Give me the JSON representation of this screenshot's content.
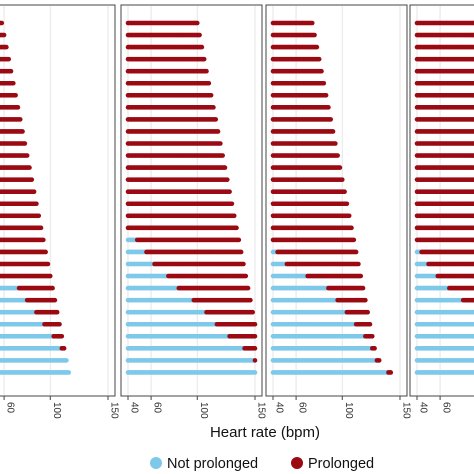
{
  "chart_data": {
    "type": "dot-strip",
    "xlabel": "Heart rate (bpm)",
    "xlim": [
      40,
      150
    ],
    "xticks": [
      "40",
      "60",
      "100",
      "150"
    ],
    "colors": {
      "not_prolonged": "#7ec8ea",
      "prolonged": "#9b0a12"
    },
    "legend": {
      "placement": "bottom",
      "entries": [
        {
          "key": "not_prolonged",
          "label": "Not prolonged"
        },
        {
          "key": "prolonged",
          "label": "Prolonged"
        }
      ]
    },
    "panels": [
      {
        "rows": [
          {
            "threshold": 40,
            "max": 58
          },
          {
            "threshold": 40,
            "max": 60
          },
          {
            "threshold": 40,
            "max": 62
          },
          {
            "threshold": 40,
            "max": 64
          },
          {
            "threshold": 40,
            "max": 66
          },
          {
            "threshold": 40,
            "max": 68
          },
          {
            "threshold": 40,
            "max": 70
          },
          {
            "threshold": 40,
            "max": 72
          },
          {
            "threshold": 40,
            "max": 74
          },
          {
            "threshold": 40,
            "max": 76
          },
          {
            "threshold": 40,
            "max": 78
          },
          {
            "threshold": 40,
            "max": 80
          },
          {
            "threshold": 40,
            "max": 82
          },
          {
            "threshold": 40,
            "max": 84
          },
          {
            "threshold": 40,
            "max": 86
          },
          {
            "threshold": 40,
            "max": 88
          },
          {
            "threshold": 40,
            "max": 90
          },
          {
            "threshold": 40,
            "max": 92
          },
          {
            "threshold": 40,
            "max": 94
          },
          {
            "threshold": 40,
            "max": 96
          },
          {
            "threshold": 40,
            "max": 98
          },
          {
            "threshold": 40,
            "max": 100
          },
          {
            "threshold": 73,
            "max": 102
          },
          {
            "threshold": 80,
            "max": 104
          },
          {
            "threshold": 88,
            "max": 106
          },
          {
            "threshold": 95,
            "max": 108
          },
          {
            "threshold": 103,
            "max": 110
          },
          {
            "threshold": 110,
            "max": 112
          },
          {
            "threshold": 116,
            "max": 114
          },
          {
            "threshold": 120,
            "max": 116
          }
        ]
      },
      {
        "rows": [
          {
            "threshold": 40,
            "max": 100
          },
          {
            "threshold": 40,
            "max": 102
          },
          {
            "threshold": 40,
            "max": 104
          },
          {
            "threshold": 40,
            "max": 106
          },
          {
            "threshold": 40,
            "max": 108
          },
          {
            "threshold": 40,
            "max": 110
          },
          {
            "threshold": 40,
            "max": 112
          },
          {
            "threshold": 40,
            "max": 114
          },
          {
            "threshold": 40,
            "max": 116
          },
          {
            "threshold": 40,
            "max": 118
          },
          {
            "threshold": 40,
            "max": 120
          },
          {
            "threshold": 40,
            "max": 122
          },
          {
            "threshold": 40,
            "max": 124
          },
          {
            "threshold": 40,
            "max": 126
          },
          {
            "threshold": 40,
            "max": 128
          },
          {
            "threshold": 40,
            "max": 130
          },
          {
            "threshold": 40,
            "max": 132
          },
          {
            "threshold": 40,
            "max": 134
          },
          {
            "threshold": 48,
            "max": 136
          },
          {
            "threshold": 56,
            "max": 138
          },
          {
            "threshold": 63,
            "max": 140
          },
          {
            "threshold": 75,
            "max": 142
          },
          {
            "threshold": 84,
            "max": 144
          },
          {
            "threshold": 97,
            "max": 146
          },
          {
            "threshold": 108,
            "max": 148
          },
          {
            "threshold": 117,
            "max": 150
          },
          {
            "threshold": 128,
            "max": 152
          },
          {
            "threshold": 141,
            "max": 154
          },
          {
            "threshold": 150,
            "max": 156
          },
          {
            "threshold": 156,
            "max": 158
          }
        ]
      },
      {
        "rows": [
          {
            "threshold": 40,
            "max": 74
          },
          {
            "threshold": 40,
            "max": 76
          },
          {
            "threshold": 40,
            "max": 78
          },
          {
            "threshold": 40,
            "max": 80
          },
          {
            "threshold": 40,
            "max": 82
          },
          {
            "threshold": 40,
            "max": 84
          },
          {
            "threshold": 40,
            "max": 86
          },
          {
            "threshold": 40,
            "max": 88
          },
          {
            "threshold": 40,
            "max": 90
          },
          {
            "threshold": 40,
            "max": 92
          },
          {
            "threshold": 40,
            "max": 94
          },
          {
            "threshold": 40,
            "max": 96
          },
          {
            "threshold": 40,
            "max": 98
          },
          {
            "threshold": 40,
            "max": 100
          },
          {
            "threshold": 40,
            "max": 102
          },
          {
            "threshold": 40,
            "max": 104
          },
          {
            "threshold": 40,
            "max": 106
          },
          {
            "threshold": 40,
            "max": 108
          },
          {
            "threshold": 40,
            "max": 110
          },
          {
            "threshold": 44,
            "max": 112
          },
          {
            "threshold": 52,
            "max": 114
          },
          {
            "threshold": 70,
            "max": 116
          },
          {
            "threshold": 88,
            "max": 118
          },
          {
            "threshold": 96,
            "max": 120
          },
          {
            "threshold": 104,
            "max": 122
          },
          {
            "threshold": 112,
            "max": 124
          },
          {
            "threshold": 120,
            "max": 126
          },
          {
            "threshold": 126,
            "max": 128
          },
          {
            "threshold": 130,
            "max": 132
          },
          {
            "threshold": 140,
            "max": 142
          }
        ]
      },
      {
        "rows": [
          {
            "threshold": 40,
            "max": 150
          },
          {
            "threshold": 40,
            "max": 150
          },
          {
            "threshold": 40,
            "max": 150
          },
          {
            "threshold": 40,
            "max": 150
          },
          {
            "threshold": 40,
            "max": 150
          },
          {
            "threshold": 40,
            "max": 150
          },
          {
            "threshold": 40,
            "max": 150
          },
          {
            "threshold": 40,
            "max": 150
          },
          {
            "threshold": 40,
            "max": 150
          },
          {
            "threshold": 40,
            "max": 150
          },
          {
            "threshold": 40,
            "max": 150
          },
          {
            "threshold": 40,
            "max": 150
          },
          {
            "threshold": 40,
            "max": 150
          },
          {
            "threshold": 40,
            "max": 150
          },
          {
            "threshold": 40,
            "max": 150
          },
          {
            "threshold": 40,
            "max": 150
          },
          {
            "threshold": 40,
            "max": 150
          },
          {
            "threshold": 40,
            "max": 150
          },
          {
            "threshold": 40,
            "max": 150
          },
          {
            "threshold": 44,
            "max": 150
          },
          {
            "threshold": 50,
            "max": 150
          },
          {
            "threshold": 58,
            "max": 150
          },
          {
            "threshold": 68,
            "max": 150
          },
          {
            "threshold": 80,
            "max": 150
          },
          {
            "threshold": 95,
            "max": 150
          },
          {
            "threshold": 110,
            "max": 150
          },
          {
            "threshold": 125,
            "max": 150
          },
          {
            "threshold": 140,
            "max": 150
          },
          {
            "threshold": 150,
            "max": 150
          },
          {
            "threshold": 150,
            "max": 150
          }
        ]
      }
    ]
  }
}
